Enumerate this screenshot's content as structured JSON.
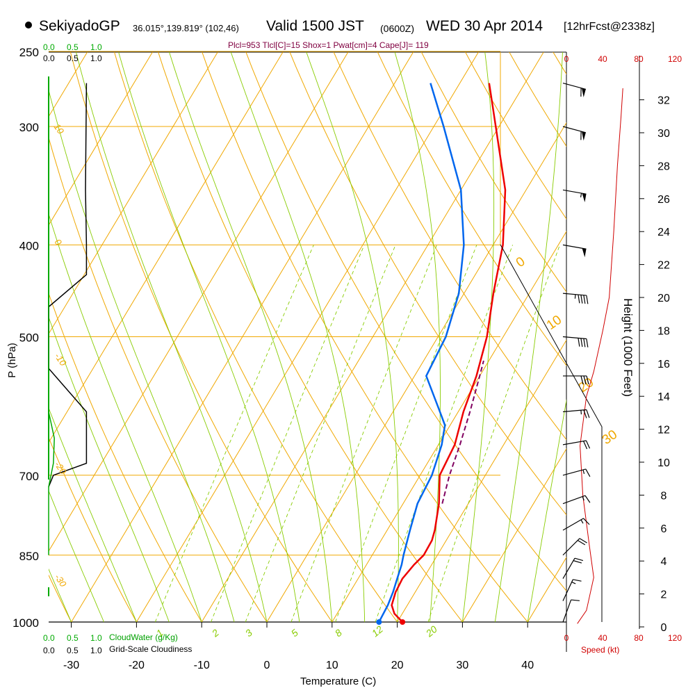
{
  "header": {
    "station": "SekiyadoGP",
    "coords": "36.015°,139.819° (102,46)",
    "valid": "Valid 1500 JST",
    "utc": "(0600Z)",
    "date": "WED 30 Apr 2014",
    "forecast": "[12hrFcst@2338z]",
    "params": "Plcl=953 Tlcl[C]=15 Shox=1 Pwat[cm]=4 Cape[J]= 119"
  },
  "labels": {
    "pressure_axis": "P (hPa)",
    "height_axis": "Height (1000 Feet)",
    "temperature_axis": "Temperature (C)",
    "speed_axis": "Speed (kt)",
    "cloud_water": "CloudWater (g/Kg)",
    "cloudiness": "Grid-Scale Cloudiness"
  },
  "colors": {
    "temperature": "#ee0000",
    "dewpoint": "#0066ee",
    "parcel": "#800060",
    "isotherm": "#f0a800",
    "dry_adiabat": "#f0a800",
    "moist_adiabat": "#88cc00",
    "mixing_ratio": "#88cc00",
    "cloudiness": "#000000",
    "cloud_water": "#00aa00",
    "wind_speed": "#d00000",
    "barbs": "#000000"
  },
  "chart_data": {
    "type": "skew-t",
    "x_ticks": [
      -30,
      -20,
      -10,
      0,
      10,
      20,
      30,
      40
    ],
    "pressure_ticks": [
      250,
      300,
      400,
      500,
      700,
      850,
      1000
    ],
    "height_ticks": [
      0,
      2,
      4,
      6,
      8,
      10,
      12,
      14,
      16,
      18,
      20,
      22,
      24,
      26,
      28,
      30,
      32
    ],
    "isotherm_labels": [
      "-10",
      "0",
      "10",
      "20",
      "30"
    ],
    "dry_adiabat_labels": [
      "10",
      "0",
      "-10",
      "-20",
      "-30"
    ],
    "mixing_ratio_labels": [
      "1",
      "2",
      "3",
      "5",
      "8",
      "12",
      "20"
    ],
    "cloudiness_ticks": [
      "0.0",
      "0.5",
      "1.0"
    ],
    "cloud_water_ticks": [
      "0.0",
      "0.5",
      "1.0"
    ],
    "speed_ticks": [
      "0",
      "40",
      "80",
      "120"
    ],
    "temperature": [
      {
        "p": 1000,
        "t": 20.8
      },
      {
        "p": 980,
        "t": 18.8
      },
      {
        "p": 960,
        "t": 17.6
      },
      {
        "p": 930,
        "t": 17.0
      },
      {
        "p": 900,
        "t": 16.8
      },
      {
        "p": 870,
        "t": 17.3
      },
      {
        "p": 850,
        "t": 17.9
      },
      {
        "p": 820,
        "t": 17.8
      },
      {
        "p": 800,
        "t": 17.3
      },
      {
        "p": 750,
        "t": 15.5
      },
      {
        "p": 700,
        "t": 13.0
      },
      {
        "p": 650,
        "t": 12.5
      },
      {
        "p": 600,
        "t": 10.8
      },
      {
        "p": 550,
        "t": 9.5
      },
      {
        "p": 500,
        "t": 7.5
      },
      {
        "p": 450,
        "t": 4.5
      },
      {
        "p": 400,
        "t": 1.5
      },
      {
        "p": 350,
        "t": -3.2
      },
      {
        "p": 300,
        "t": -10.5
      },
      {
        "p": 270,
        "t": -15.5
      }
    ],
    "dewpoint": [
      {
        "p": 1000,
        "t": 17.2
      },
      {
        "p": 960,
        "t": 17.0
      },
      {
        "p": 930,
        "t": 16.6
      },
      {
        "p": 900,
        "t": 16.0
      },
      {
        "p": 870,
        "t": 15.4
      },
      {
        "p": 850,
        "t": 14.8
      },
      {
        "p": 800,
        "t": 13.5
      },
      {
        "p": 750,
        "t": 12.2
      },
      {
        "p": 700,
        "t": 11.8
      },
      {
        "p": 650,
        "t": 10.5
      },
      {
        "p": 620,
        "t": 9.2
      },
      {
        "p": 600,
        "t": 7.2
      },
      {
        "p": 550,
        "t": 1.8
      },
      {
        "p": 500,
        "t": 1.2
      },
      {
        "p": 450,
        "t": -0.8
      },
      {
        "p": 400,
        "t": -4.5
      },
      {
        "p": 350,
        "t": -10.0
      },
      {
        "p": 300,
        "t": -18.5
      },
      {
        "p": 270,
        "t": -24.5
      }
    ],
    "parcel": [
      {
        "p": 750,
        "t": 16.0
      },
      {
        "p": 700,
        "t": 14.5
      },
      {
        "p": 650,
        "t": 13.3
      },
      {
        "p": 600,
        "t": 11.8
      },
      {
        "p": 550,
        "t": 10.0
      },
      {
        "p": 530,
        "t": 9.2
      }
    ],
    "cloudiness": [
      {
        "p": 270,
        "v": 0.8
      },
      {
        "p": 350,
        "v": 0.78
      },
      {
        "p": 400,
        "v": 0.8
      },
      {
        "p": 430,
        "v": 0.8
      },
      {
        "p": 465,
        "v": 0.0
      },
      {
        "p": 540,
        "v": 0.0
      },
      {
        "p": 600,
        "v": 0.8
      },
      {
        "p": 680,
        "v": 0.8
      },
      {
        "p": 700,
        "v": 0.1
      },
      {
        "p": 720,
        "v": 0.0
      }
    ],
    "cloud_water": [
      {
        "p": 270,
        "v": 0.0
      },
      {
        "p": 600,
        "v": 0.0
      },
      {
        "p": 640,
        "v": 0.12
      },
      {
        "p": 680,
        "v": 0.1
      },
      {
        "p": 720,
        "v": 0.0
      },
      {
        "p": 850,
        "v": 0.0
      }
    ],
    "wind_speed": [
      {
        "h": 0.2,
        "s": 12
      },
      {
        "h": 1.0,
        "s": 22
      },
      {
        "h": 3.0,
        "s": 30
      },
      {
        "h": 5.0,
        "s": 25
      },
      {
        "h": 8.0,
        "s": 18
      },
      {
        "h": 11.0,
        "s": 15
      },
      {
        "h": 14.0,
        "s": 22
      },
      {
        "h": 15.5,
        "s": 30
      },
      {
        "h": 18.0,
        "s": 40
      },
      {
        "h": 20.0,
        "s": 47
      },
      {
        "h": 24.0,
        "s": 52
      },
      {
        "h": 28.0,
        "s": 56
      },
      {
        "h": 31.0,
        "s": 60
      },
      {
        "h": 32.7,
        "s": 62
      }
    ],
    "wind_barbs": [
      {
        "p": 1000,
        "dir": 200,
        "spd": 10
      },
      {
        "p": 950,
        "dir": 205,
        "spd": 15
      },
      {
        "p": 900,
        "dir": 210,
        "spd": 20
      },
      {
        "p": 850,
        "dir": 225,
        "spd": 20
      },
      {
        "p": 800,
        "dir": 240,
        "spd": 15
      },
      {
        "p": 750,
        "dir": 250,
        "spd": 15
      },
      {
        "p": 700,
        "dir": 255,
        "spd": 15
      },
      {
        "p": 650,
        "dir": 260,
        "spd": 20
      },
      {
        "p": 600,
        "dir": 265,
        "spd": 25
      },
      {
        "p": 550,
        "dir": 270,
        "spd": 30
      },
      {
        "p": 500,
        "dir": 275,
        "spd": 40
      },
      {
        "p": 450,
        "dir": 275,
        "spd": 45
      },
      {
        "p": 400,
        "dir": 280,
        "spd": 50
      },
      {
        "p": 350,
        "dir": 280,
        "spd": 55
      },
      {
        "p": 300,
        "dir": 285,
        "spd": 60
      },
      {
        "p": 270,
        "dir": 285,
        "spd": 60
      }
    ]
  }
}
